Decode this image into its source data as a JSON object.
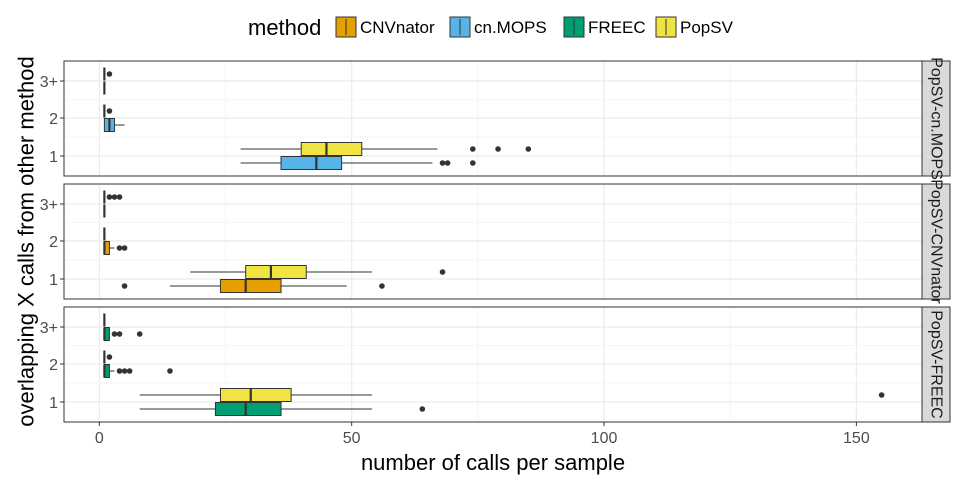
{
  "chart_data": {
    "type": "boxplot",
    "orientation": "horizontal",
    "xlabel": "number of calls per sample",
    "ylabel": "overlapping X calls from other method",
    "xlim": [
      -7,
      163
    ],
    "x_ticks": [
      0,
      50,
      100,
      150
    ],
    "categories": [
      "1",
      "2",
      "3+"
    ],
    "legend": {
      "title": "method",
      "position": "top",
      "items": [
        {
          "name": "CNVnator",
          "color": "#E69F00"
        },
        {
          "name": "cn.MOPS",
          "color": "#56B4E9"
        },
        {
          "name": "FREEC",
          "color": "#009E73"
        },
        {
          "name": "PopSV",
          "color": "#F0E442"
        }
      ]
    },
    "panels": [
      {
        "label": "PopSV-cn.MOPS",
        "boxes": [
          {
            "category": "3+",
            "method": "cn.MOPS",
            "whisker_low": 1,
            "q1": 1,
            "median": 1,
            "q3": 1,
            "whisker_high": 1,
            "outliers": []
          },
          {
            "category": "3+",
            "method": "PopSV",
            "whisker_low": 1,
            "q1": 1,
            "median": 1,
            "q3": 1,
            "whisker_high": 1,
            "outliers": [
              2
            ]
          },
          {
            "category": "2",
            "method": "cn.MOPS",
            "whisker_low": 1,
            "q1": 1,
            "median": 2,
            "q3": 3,
            "whisker_high": 5,
            "outliers": []
          },
          {
            "category": "2",
            "method": "PopSV",
            "whisker_low": 1,
            "q1": 1,
            "median": 1,
            "q3": 1,
            "whisker_high": 1,
            "outliers": [
              2
            ]
          },
          {
            "category": "1",
            "method": "cn.MOPS",
            "whisker_low": 28,
            "q1": 36,
            "median": 43,
            "q3": 48,
            "whisker_high": 66,
            "outliers": [
              68,
              69,
              74
            ]
          },
          {
            "category": "1",
            "method": "PopSV",
            "whisker_low": 28,
            "q1": 40,
            "median": 45,
            "q3": 52,
            "whisker_high": 67,
            "outliers": [
              74,
              79,
              85
            ]
          }
        ]
      },
      {
        "label": "PopSV-CNVnator",
        "boxes": [
          {
            "category": "3+",
            "method": "CNVnator",
            "whisker_low": 1,
            "q1": 1,
            "median": 1,
            "q3": 1,
            "whisker_high": 1,
            "outliers": []
          },
          {
            "category": "3+",
            "method": "PopSV",
            "whisker_low": 1,
            "q1": 1,
            "median": 1,
            "q3": 1,
            "whisker_high": 1,
            "outliers": [
              2,
              3,
              4
            ]
          },
          {
            "category": "2",
            "method": "CNVnator",
            "whisker_low": 1,
            "q1": 1,
            "median": 1,
            "q3": 2,
            "whisker_high": 3,
            "outliers": [
              4,
              5
            ]
          },
          {
            "category": "2",
            "method": "PopSV",
            "whisker_low": 1,
            "q1": 1,
            "median": 1,
            "q3": 1,
            "whisker_high": 1,
            "outliers": []
          },
          {
            "category": "1",
            "method": "CNVnator",
            "whisker_low": 14,
            "q1": 24,
            "median": 29,
            "q3": 36,
            "whisker_high": 49,
            "outliers": [
              5,
              56
            ]
          },
          {
            "category": "1",
            "method": "PopSV",
            "whisker_low": 18,
            "q1": 29,
            "median": 34,
            "q3": 41,
            "whisker_high": 54,
            "outliers": [
              68
            ]
          }
        ]
      },
      {
        "label": "PopSV-FREEC",
        "boxes": [
          {
            "category": "3+",
            "method": "FREEC",
            "whisker_low": 1,
            "q1": 1,
            "median": 1,
            "q3": 2,
            "whisker_high": 2,
            "outliers": [
              3,
              4,
              8
            ]
          },
          {
            "category": "3+",
            "method": "PopSV",
            "whisker_low": 1,
            "q1": 1,
            "median": 1,
            "q3": 1,
            "whisker_high": 1,
            "outliers": []
          },
          {
            "category": "2",
            "method": "FREEC",
            "whisker_low": 1,
            "q1": 1,
            "median": 1,
            "q3": 2,
            "whisker_high": 3,
            "outliers": [
              4,
              5,
              6,
              14
            ]
          },
          {
            "category": "2",
            "method": "PopSV",
            "whisker_low": 1,
            "q1": 1,
            "median": 1,
            "q3": 1,
            "whisker_high": 1,
            "outliers": [
              2
            ]
          },
          {
            "category": "1",
            "method": "FREEC",
            "whisker_low": 8,
            "q1": 23,
            "median": 29,
            "q3": 36,
            "whisker_high": 54,
            "outliers": [
              64
            ]
          },
          {
            "category": "1",
            "method": "PopSV",
            "whisker_low": 8,
            "q1": 24,
            "median": 30,
            "q3": 38,
            "whisker_high": 54,
            "outliers": [
              155
            ]
          }
        ]
      }
    ]
  }
}
